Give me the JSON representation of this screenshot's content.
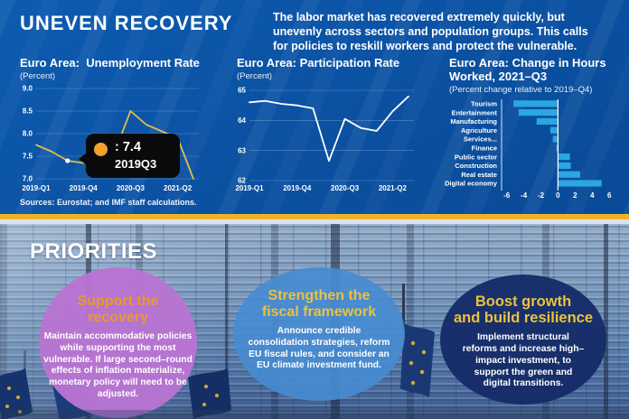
{
  "header": {
    "title": "UNEVEN RECOVERY",
    "intro": "The labor market has recovered extremely quickly, but\nunevenly across sectors and population groups. This calls\nfor policies to reskill workers and protect the vulnerable."
  },
  "chart_data": [
    {
      "id": "unemployment-rate",
      "type": "line",
      "title": "Euro Area:  Unemployment Rate",
      "subtitle": "(Percent)",
      "x": [
        "2019-Q1",
        "2019-Q2",
        "2019-Q3",
        "2019-Q4",
        "2020-Q1",
        "2020-Q2",
        "2020-Q3",
        "2020-Q4",
        "2021-Q1",
        "2021-Q2",
        "2021-Q3"
      ],
      "values": [
        7.75,
        7.6,
        7.4,
        7.35,
        7.3,
        7.6,
        8.5,
        8.2,
        8.05,
        7.9,
        7.0
      ],
      "ylim": [
        7.0,
        9.0
      ],
      "yticks": [
        7.0,
        7.5,
        8.0,
        8.5,
        9.0
      ],
      "ytick_labels": [
        "7.0",
        "7.5",
        "8.0",
        "8.5",
        "9.0"
      ],
      "xticks": [
        "2019-Q1",
        "2019-Q4",
        "2020-Q3",
        "2021-Q2"
      ],
      "line_color": "#e2bc4a",
      "annotation": {
        "marker_x": "2019-Q3",
        "marker_value": 7.4,
        "value_label": ": 7.4",
        "period_label": "2019Q3"
      }
    },
    {
      "id": "participation-rate",
      "type": "line",
      "title": "Euro Area: Participation Rate",
      "subtitle": "(Percent)",
      "x": [
        "2019-Q1",
        "2019-Q2",
        "2019-Q3",
        "2019-Q4",
        "2020-Q1",
        "2020-Q2",
        "2020-Q3",
        "2020-Q4",
        "2021-Q1",
        "2021-Q2",
        "2021-Q3"
      ],
      "values": [
        64.6,
        64.65,
        64.55,
        64.5,
        64.4,
        62.65,
        64.05,
        63.75,
        63.65,
        64.3,
        64.8
      ],
      "ylim": [
        62,
        65
      ],
      "yticks": [
        62,
        63,
        64,
        65
      ],
      "ytick_labels": [
        "62",
        "63",
        "64",
        "65"
      ],
      "xticks": [
        "2019-Q1",
        "2019-Q4",
        "2020-Q3",
        "2021-Q2"
      ],
      "line_color": "#ffffff"
    },
    {
      "id": "hours-worked-change",
      "type": "bar",
      "title": "Euro Area: Change in Hours\nWorked, 2021–Q3",
      "subtitle": "(Percent change relative to 2019–Q4)",
      "categories": [
        "Tourism",
        "Entertainment",
        "Manufacturing",
        "Agriculture",
        "Services...",
        "Finance",
        "Public sector",
        "Construction",
        "Real estate",
        "Digital economy"
      ],
      "values": [
        -5.2,
        -4.6,
        -2.5,
        -0.9,
        -0.6,
        -0.2,
        1.4,
        1.5,
        2.6,
        5.1
      ],
      "xlim": [
        -6.6,
        6.4
      ],
      "xticks": [
        -6,
        -4,
        -2,
        0,
        2,
        4,
        6
      ],
      "xtick_labels": [
        "-6",
        "-4",
        "-2",
        "0",
        "2",
        "4",
        "6"
      ],
      "bar_color": "#2aa7e0"
    }
  ],
  "sources": "Sources: Eurostat; and IMF staff calculations.",
  "priorities": {
    "heading": "PRIORITIES",
    "bubbles": [
      {
        "title": "Support the\nrecovery",
        "body": "Maintain accommodative policies\nwhile supporting the most\nvulnerable. If large second–round\neffects of inflation materialize,\nmonetary policy will need to be\nadjusted.",
        "fill": "rgba(185,116,211,0.97)",
        "title_color": "#e8992f"
      },
      {
        "title": "Strengthen the\nfiscal framework",
        "body": "Announce credible\nconsolidation strategies, reform\nEU fiscal rules, and consider an\nEU climate investment fund.",
        "fill": "rgba(71,140,211,0.9)",
        "title_color": "#eac23e"
      },
      {
        "title": "Boost growth\nand build resilience",
        "body": "Implement structural\nreforms and increase high–\nimpact investment, to\nsupport the green and\ndigital transitions.",
        "fill": "rgba(21,44,104,0.96)",
        "title_color": "#eac23e"
      }
    ]
  },
  "colors": {
    "background": "#0b51a2",
    "divider_gold": "#efb32a",
    "divider_light": "#dce2ec",
    "tooltip_bg": "#0a0a0c",
    "tooltip_dot": "#f0a32b",
    "bar_color": "#2aa7e0",
    "line1_color": "#e2bc4a",
    "line2_color": "#ffffff"
  }
}
